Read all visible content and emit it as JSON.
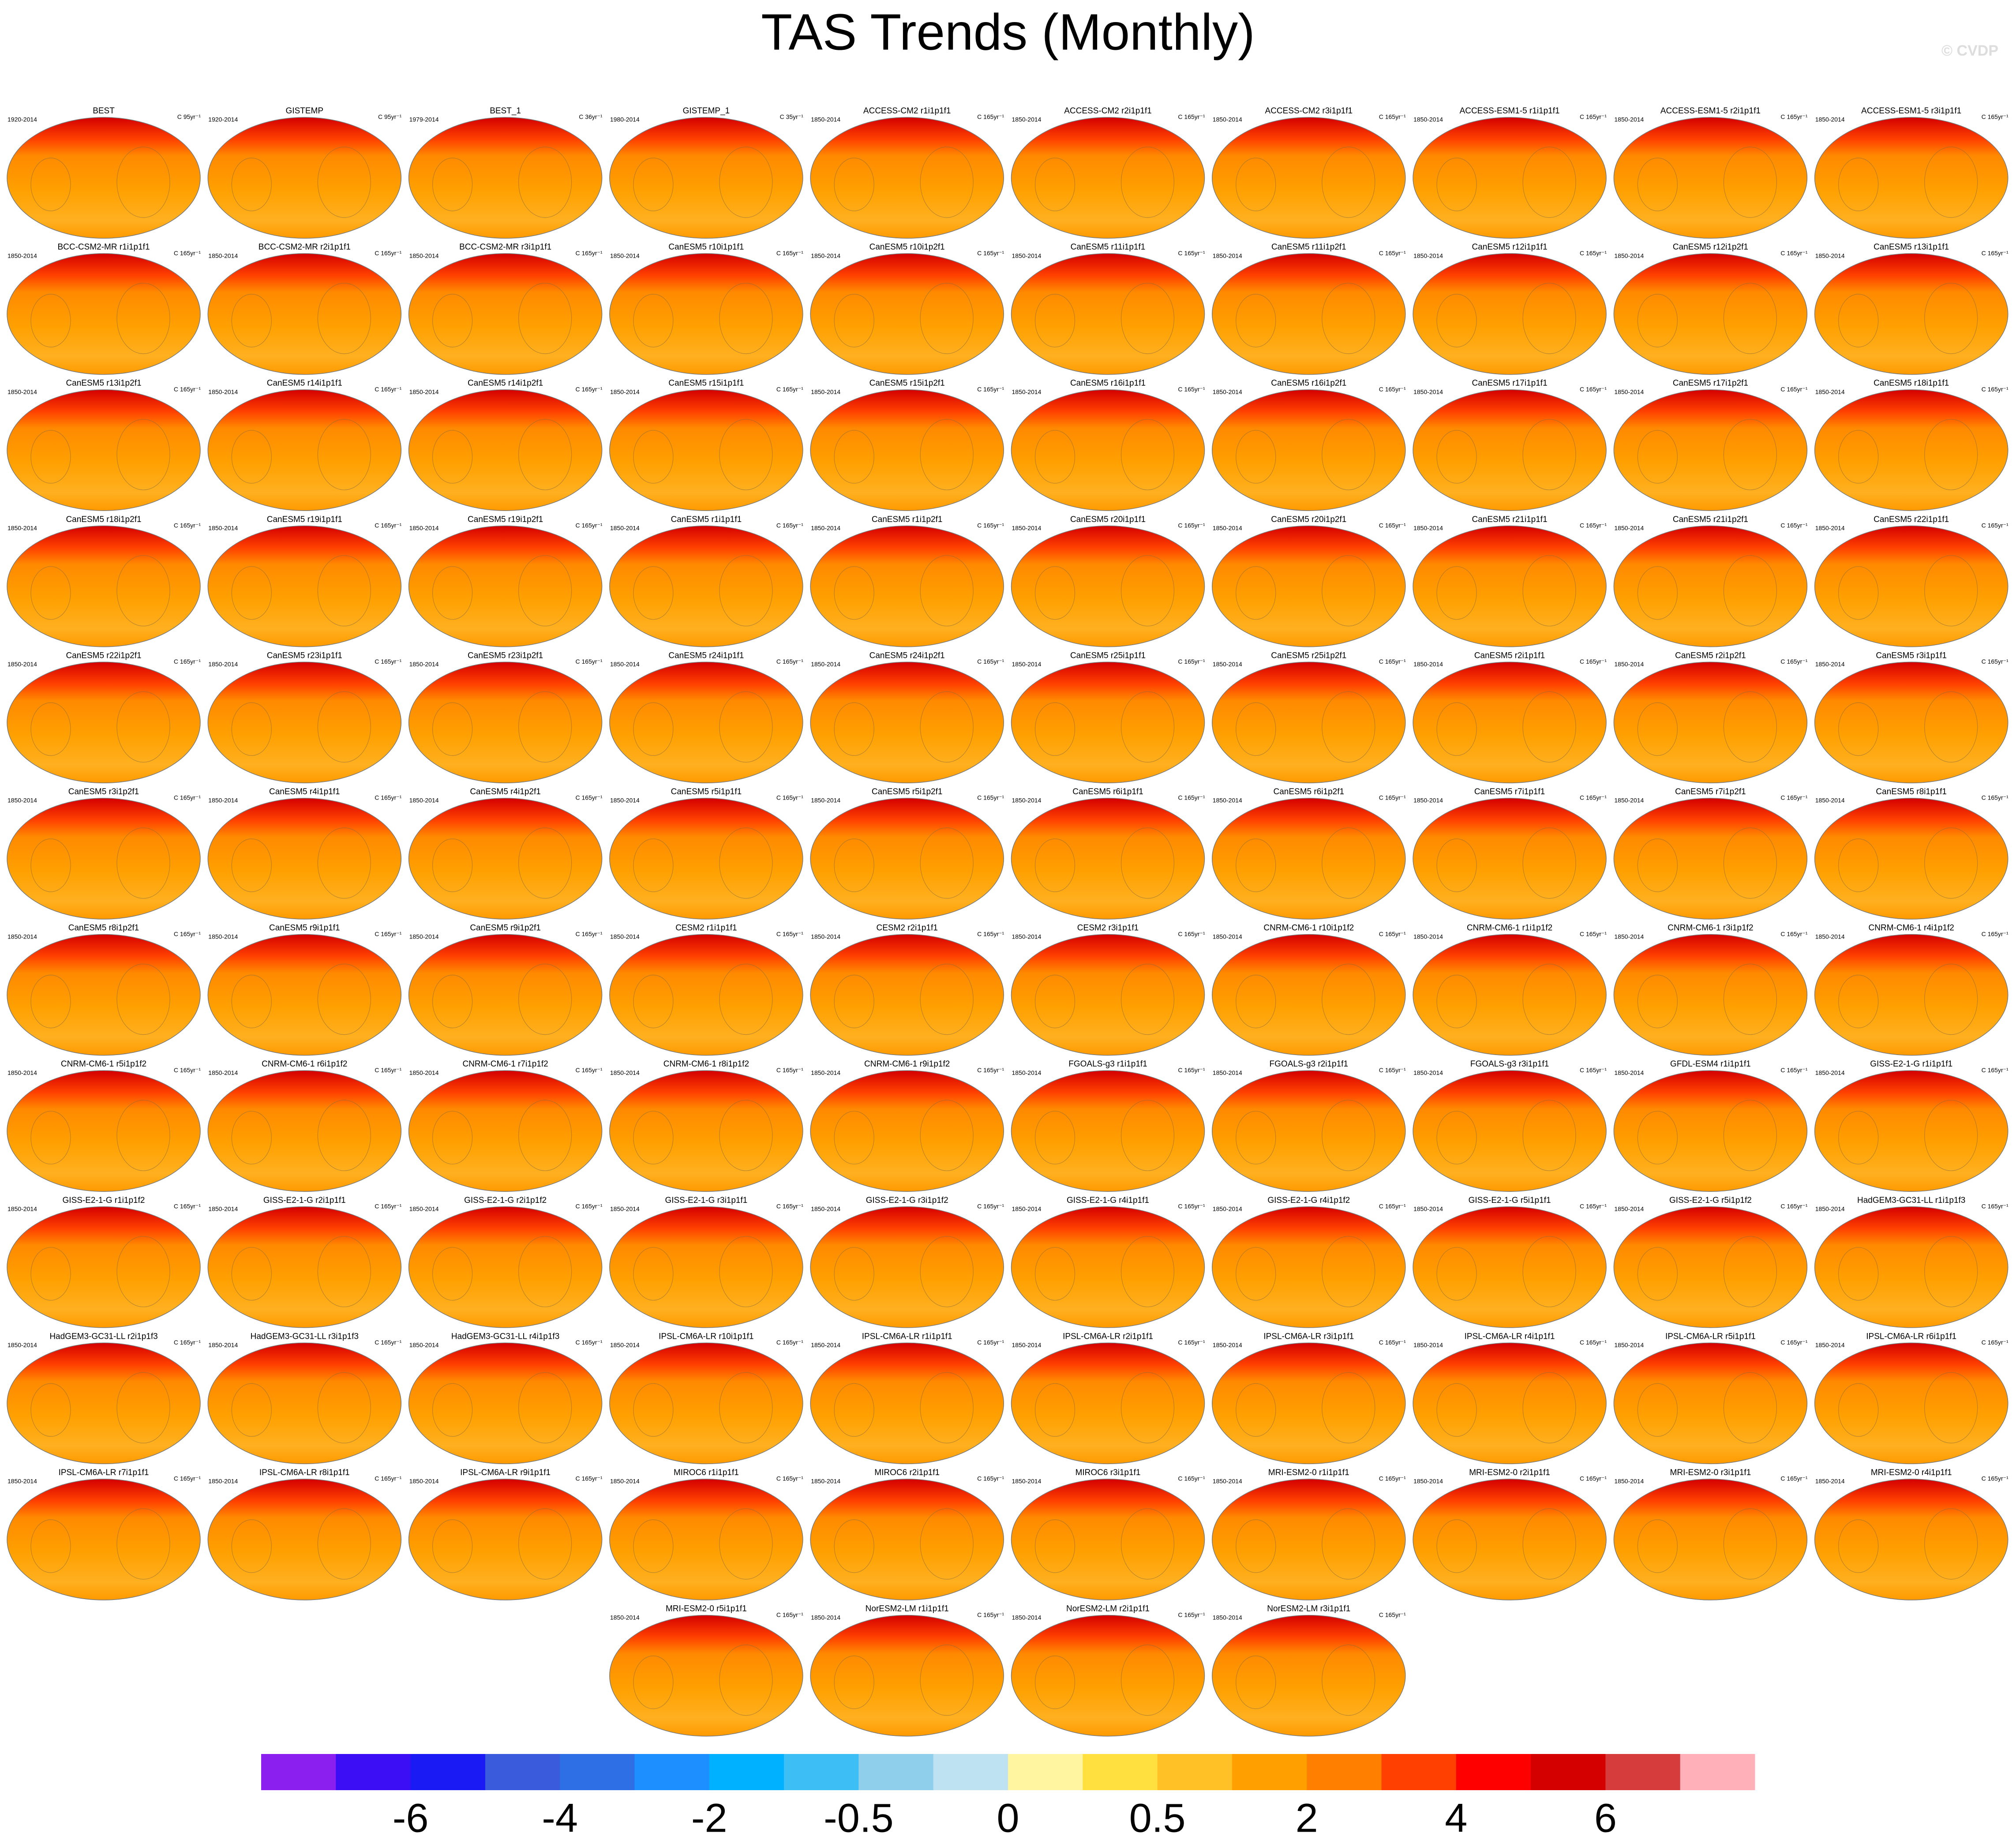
{
  "chart_data": {
    "type": "map-grid",
    "title": "TAS Trends (Monthly)",
    "copyright": "© CVDP",
    "panels": [
      {
        "title": "BEST",
        "period": "1920-2014",
        "units": "C 95yr⁻¹"
      },
      {
        "title": "GISTEMP",
        "period": "1920-2014",
        "units": "C 95yr⁻¹"
      },
      {
        "title": "BEST_1",
        "period": "1979-2014",
        "units": "C 36yr⁻¹"
      },
      {
        "title": "GISTEMP_1",
        "period": "1980-2014",
        "units": "C 35yr⁻¹"
      },
      {
        "title": "ACCESS-CM2 r1i1p1f1",
        "period": "1850-2014",
        "units": "C 165yr⁻¹"
      },
      {
        "title": "ACCESS-CM2 r2i1p1f1",
        "period": "1850-2014",
        "units": "C 165yr⁻¹"
      },
      {
        "title": "ACCESS-CM2 r3i1p1f1",
        "period": "1850-2014",
        "units": "C 165yr⁻¹"
      },
      {
        "title": "ACCESS-ESM1-5 r1i1p1f1",
        "period": "1850-2014",
        "units": "C 165yr⁻¹"
      },
      {
        "title": "ACCESS-ESM1-5 r2i1p1f1",
        "period": "1850-2014",
        "units": "C 165yr⁻¹"
      },
      {
        "title": "ACCESS-ESM1-5 r3i1p1f1",
        "period": "1850-2014",
        "units": "C 165yr⁻¹"
      },
      {
        "title": "BCC-CSM2-MR r1i1p1f1",
        "period": "1850-2014",
        "units": "C 165yr⁻¹"
      },
      {
        "title": "BCC-CSM2-MR r2i1p1f1",
        "period": "1850-2014",
        "units": "C 165yr⁻¹"
      },
      {
        "title": "BCC-CSM2-MR r3i1p1f1",
        "period": "1850-2014",
        "units": "C 165yr⁻¹"
      },
      {
        "title": "CanESM5 r10i1p1f1",
        "period": "1850-2014",
        "units": "C 165yr⁻¹"
      },
      {
        "title": "CanESM5 r10i1p2f1",
        "period": "1850-2014",
        "units": "C 165yr⁻¹"
      },
      {
        "title": "CanESM5 r11i1p1f1",
        "period": "1850-2014",
        "units": "C 165yr⁻¹"
      },
      {
        "title": "CanESM5 r11i1p2f1",
        "period": "1850-2014",
        "units": "C 165yr⁻¹"
      },
      {
        "title": "CanESM5 r12i1p1f1",
        "period": "1850-2014",
        "units": "C 165yr⁻¹"
      },
      {
        "title": "CanESM5 r12i1p2f1",
        "period": "1850-2014",
        "units": "C 165yr⁻¹"
      },
      {
        "title": "CanESM5 r13i1p1f1",
        "period": "1850-2014",
        "units": "C 165yr⁻¹"
      },
      {
        "title": "CanESM5 r13i1p2f1",
        "period": "1850-2014",
        "units": "C 165yr⁻¹"
      },
      {
        "title": "CanESM5 r14i1p1f1",
        "period": "1850-2014",
        "units": "C 165yr⁻¹"
      },
      {
        "title": "CanESM5 r14i1p2f1",
        "period": "1850-2014",
        "units": "C 165yr⁻¹"
      },
      {
        "title": "CanESM5 r15i1p1f1",
        "period": "1850-2014",
        "units": "C 165yr⁻¹"
      },
      {
        "title": "CanESM5 r15i1p2f1",
        "period": "1850-2014",
        "units": "C 165yr⁻¹"
      },
      {
        "title": "CanESM5 r16i1p1f1",
        "period": "1850-2014",
        "units": "C 165yr⁻¹"
      },
      {
        "title": "CanESM5 r16i1p2f1",
        "period": "1850-2014",
        "units": "C 165yr⁻¹"
      },
      {
        "title": "CanESM5 r17i1p1f1",
        "period": "1850-2014",
        "units": "C 165yr⁻¹"
      },
      {
        "title": "CanESM5 r17i1p2f1",
        "period": "1850-2014",
        "units": "C 165yr⁻¹"
      },
      {
        "title": "CanESM5 r18i1p1f1",
        "period": "1850-2014",
        "units": "C 165yr⁻¹"
      },
      {
        "title": "CanESM5 r18i1p2f1",
        "period": "1850-2014",
        "units": "C 165yr⁻¹"
      },
      {
        "title": "CanESM5 r19i1p1f1",
        "period": "1850-2014",
        "units": "C 165yr⁻¹"
      },
      {
        "title": "CanESM5 r19i1p2f1",
        "period": "1850-2014",
        "units": "C 165yr⁻¹"
      },
      {
        "title": "CanESM5 r1i1p1f1",
        "period": "1850-2014",
        "units": "C 165yr⁻¹"
      },
      {
        "title": "CanESM5 r1i1p2f1",
        "period": "1850-2014",
        "units": "C 165yr⁻¹"
      },
      {
        "title": "CanESM5 r20i1p1f1",
        "period": "1850-2014",
        "units": "C 165yr⁻¹"
      },
      {
        "title": "CanESM5 r20i1p2f1",
        "period": "1850-2014",
        "units": "C 165yr⁻¹"
      },
      {
        "title": "CanESM5 r21i1p1f1",
        "period": "1850-2014",
        "units": "C 165yr⁻¹"
      },
      {
        "title": "CanESM5 r21i1p2f1",
        "period": "1850-2014",
        "units": "C 165yr⁻¹"
      },
      {
        "title": "CanESM5 r22i1p1f1",
        "period": "1850-2014",
        "units": "C 165yr⁻¹"
      },
      {
        "title": "CanESM5 r22i1p2f1",
        "period": "1850-2014",
        "units": "C 165yr⁻¹"
      },
      {
        "title": "CanESM5 r23i1p1f1",
        "period": "1850-2014",
        "units": "C 165yr⁻¹"
      },
      {
        "title": "CanESM5 r23i1p2f1",
        "period": "1850-2014",
        "units": "C 165yr⁻¹"
      },
      {
        "title": "CanESM5 r24i1p1f1",
        "period": "1850-2014",
        "units": "C 165yr⁻¹"
      },
      {
        "title": "CanESM5 r24i1p2f1",
        "period": "1850-2014",
        "units": "C 165yr⁻¹"
      },
      {
        "title": "CanESM5 r25i1p1f1",
        "period": "1850-2014",
        "units": "C 165yr⁻¹"
      },
      {
        "title": "CanESM5 r25i1p2f1",
        "period": "1850-2014",
        "units": "C 165yr⁻¹"
      },
      {
        "title": "CanESM5 r2i1p1f1",
        "period": "1850-2014",
        "units": "C 165yr⁻¹"
      },
      {
        "title": "CanESM5 r2i1p2f1",
        "period": "1850-2014",
        "units": "C 165yr⁻¹"
      },
      {
        "title": "CanESM5 r3i1p1f1",
        "period": "1850-2014",
        "units": "C 165yr⁻¹"
      },
      {
        "title": "CanESM5 r3i1p2f1",
        "period": "1850-2014",
        "units": "C 165yr⁻¹"
      },
      {
        "title": "CanESM5 r4i1p1f1",
        "period": "1850-2014",
        "units": "C 165yr⁻¹"
      },
      {
        "title": "CanESM5 r4i1p2f1",
        "period": "1850-2014",
        "units": "C 165yr⁻¹"
      },
      {
        "title": "CanESM5 r5i1p1f1",
        "period": "1850-2014",
        "units": "C 165yr⁻¹"
      },
      {
        "title": "CanESM5 r5i1p2f1",
        "period": "1850-2014",
        "units": "C 165yr⁻¹"
      },
      {
        "title": "CanESM5 r6i1p1f1",
        "period": "1850-2014",
        "units": "C 165yr⁻¹"
      },
      {
        "title": "CanESM5 r6i1p2f1",
        "period": "1850-2014",
        "units": "C 165yr⁻¹"
      },
      {
        "title": "CanESM5 r7i1p1f1",
        "period": "1850-2014",
        "units": "C 165yr⁻¹"
      },
      {
        "title": "CanESM5 r7i1p2f1",
        "period": "1850-2014",
        "units": "C 165yr⁻¹"
      },
      {
        "title": "CanESM5 r8i1p1f1",
        "period": "1850-2014",
        "units": "C 165yr⁻¹"
      },
      {
        "title": "CanESM5 r8i1p2f1",
        "period": "1850-2014",
        "units": "C 165yr⁻¹"
      },
      {
        "title": "CanESM5 r9i1p1f1",
        "period": "1850-2014",
        "units": "C 165yr⁻¹"
      },
      {
        "title": "CanESM5 r9i1p2f1",
        "period": "1850-2014",
        "units": "C 165yr⁻¹"
      },
      {
        "title": "CESM2 r1i1p1f1",
        "period": "1850-2014",
        "units": "C 165yr⁻¹"
      },
      {
        "title": "CESM2 r2i1p1f1",
        "period": "1850-2014",
        "units": "C 165yr⁻¹"
      },
      {
        "title": "CESM2 r3i1p1f1",
        "period": "1850-2014",
        "units": "C 165yr⁻¹"
      },
      {
        "title": "CNRM-CM6-1 r10i1p1f2",
        "period": "1850-2014",
        "units": "C 165yr⁻¹"
      },
      {
        "title": "CNRM-CM6-1 r1i1p1f2",
        "period": "1850-2014",
        "units": "C 165yr⁻¹"
      },
      {
        "title": "CNRM-CM6-1 r3i1p1f2",
        "period": "1850-2014",
        "units": "C 165yr⁻¹"
      },
      {
        "title": "CNRM-CM6-1 r4i1p1f2",
        "period": "1850-2014",
        "units": "C 165yr⁻¹"
      },
      {
        "title": "CNRM-CM6-1 r5i1p1f2",
        "period": "1850-2014",
        "units": "C 165yr⁻¹"
      },
      {
        "title": "CNRM-CM6-1 r6i1p1f2",
        "period": "1850-2014",
        "units": "C 165yr⁻¹"
      },
      {
        "title": "CNRM-CM6-1 r7i1p1f2",
        "period": "1850-2014",
        "units": "C 165yr⁻¹"
      },
      {
        "title": "CNRM-CM6-1 r8i1p1f2",
        "period": "1850-2014",
        "units": "C 165yr⁻¹"
      },
      {
        "title": "CNRM-CM6-1 r9i1p1f2",
        "period": "1850-2014",
        "units": "C 165yr⁻¹"
      },
      {
        "title": "FGOALS-g3 r1i1p1f1",
        "period": "1850-2014",
        "units": "C 165yr⁻¹"
      },
      {
        "title": "FGOALS-g3 r2i1p1f1",
        "period": "1850-2014",
        "units": "C 165yr⁻¹"
      },
      {
        "title": "FGOALS-g3 r3i1p1f1",
        "period": "1850-2014",
        "units": "C 165yr⁻¹"
      },
      {
        "title": "GFDL-ESM4 r1i1p1f1",
        "period": "1850-2014",
        "units": "C 165yr⁻¹"
      },
      {
        "title": "GISS-E2-1-G r1i1p1f1",
        "period": "1850-2014",
        "units": "C 165yr⁻¹"
      },
      {
        "title": "GISS-E2-1-G r1i1p1f2",
        "period": "1850-2014",
        "units": "C 165yr⁻¹"
      },
      {
        "title": "GISS-E2-1-G r2i1p1f1",
        "period": "1850-2014",
        "units": "C 165yr⁻¹"
      },
      {
        "title": "GISS-E2-1-G r2i1p1f2",
        "period": "1850-2014",
        "units": "C 165yr⁻¹"
      },
      {
        "title": "GISS-E2-1-G r3i1p1f1",
        "period": "1850-2014",
        "units": "C 165yr⁻¹"
      },
      {
        "title": "GISS-E2-1-G r3i1p1f2",
        "period": "1850-2014",
        "units": "C 165yr⁻¹"
      },
      {
        "title": "GISS-E2-1-G r4i1p1f1",
        "period": "1850-2014",
        "units": "C 165yr⁻¹"
      },
      {
        "title": "GISS-E2-1-G r4i1p1f2",
        "period": "1850-2014",
        "units": "C 165yr⁻¹"
      },
      {
        "title": "GISS-E2-1-G r5i1p1f1",
        "period": "1850-2014",
        "units": "C 165yr⁻¹"
      },
      {
        "title": "GISS-E2-1-G r5i1p1f2",
        "period": "1850-2014",
        "units": "C 165yr⁻¹"
      },
      {
        "title": "HadGEM3-GC31-LL r1i1p1f3",
        "period": "1850-2014",
        "units": "C 165yr⁻¹"
      },
      {
        "title": "HadGEM3-GC31-LL r2i1p1f3",
        "period": "1850-2014",
        "units": "C 165yr⁻¹"
      },
      {
        "title": "HadGEM3-GC31-LL r3i1p1f3",
        "period": "1850-2014",
        "units": "C 165yr⁻¹"
      },
      {
        "title": "HadGEM3-GC31-LL r4i1p1f3",
        "period": "1850-2014",
        "units": "C 165yr⁻¹"
      },
      {
        "title": "IPSL-CM6A-LR r10i1p1f1",
        "period": "1850-2014",
        "units": "C 165yr⁻¹"
      },
      {
        "title": "IPSL-CM6A-LR r1i1p1f1",
        "period": "1850-2014",
        "units": "C 165yr⁻¹"
      },
      {
        "title": "IPSL-CM6A-LR r2i1p1f1",
        "period": "1850-2014",
        "units": "C 165yr⁻¹"
      },
      {
        "title": "IPSL-CM6A-LR r3i1p1f1",
        "period": "1850-2014",
        "units": "C 165yr⁻¹"
      },
      {
        "title": "IPSL-CM6A-LR r4i1p1f1",
        "period": "1850-2014",
        "units": "C 165yr⁻¹"
      },
      {
        "title": "IPSL-CM6A-LR r5i1p1f1",
        "period": "1850-2014",
        "units": "C 165yr⁻¹"
      },
      {
        "title": "IPSL-CM6A-LR r6i1p1f1",
        "period": "1850-2014",
        "units": "C 165yr⁻¹"
      },
      {
        "title": "IPSL-CM6A-LR r7i1p1f1",
        "period": "1850-2014",
        "units": "C 165yr⁻¹"
      },
      {
        "title": "IPSL-CM6A-LR r8i1p1f1",
        "period": "1850-2014",
        "units": "C 165yr⁻¹"
      },
      {
        "title": "IPSL-CM6A-LR r9i1p1f1",
        "period": "1850-2014",
        "units": "C 165yr⁻¹"
      },
      {
        "title": "MIROC6 r1i1p1f1",
        "period": "1850-2014",
        "units": "C 165yr⁻¹"
      },
      {
        "title": "MIROC6 r2i1p1f1",
        "period": "1850-2014",
        "units": "C 165yr⁻¹"
      },
      {
        "title": "MIROC6 r3i1p1f1",
        "period": "1850-2014",
        "units": "C 165yr⁻¹"
      },
      {
        "title": "MRI-ESM2-0 r1i1p1f1",
        "period": "1850-2014",
        "units": "C 165yr⁻¹"
      },
      {
        "title": "MRI-ESM2-0 r2i1p1f1",
        "period": "1850-2014",
        "units": "C 165yr⁻¹"
      },
      {
        "title": "MRI-ESM2-0 r3i1p1f1",
        "period": "1850-2014",
        "units": "C 165yr⁻¹"
      },
      {
        "title": "MRI-ESM2-0 r4i1p1f1",
        "period": "1850-2014",
        "units": "C 165yr⁻¹"
      },
      {
        "title": "MRI-ESM2-0 r5i1p1f1",
        "period": "1850-2014",
        "units": "C 165yr⁻¹"
      },
      {
        "title": "NorESM2-LM r1i1p1f1",
        "period": "1850-2014",
        "units": "C 165yr⁻¹"
      },
      {
        "title": "NorESM2-LM r2i1p1f1",
        "period": "1850-2014",
        "units": "C 165yr⁻¹"
      },
      {
        "title": "NorESM2-LM r3i1p1f1",
        "period": "1850-2014",
        "units": "C 165yr⁻¹"
      }
    ],
    "colorbar": {
      "colors": [
        "#8a1ff0",
        "#3b0ef5",
        "#1a1af5",
        "#3a5cdc",
        "#2e6fe6",
        "#1e8fff",
        "#00b1ff",
        "#3dbff5",
        "#90cfec",
        "#bee2f2",
        "#fff4a0",
        "#ffe03f",
        "#ffc125",
        "#ffa000",
        "#ff7f00",
        "#ff4000",
        "#ff0000",
        "#d40000",
        "#d63c3c",
        "#ffb0b8"
      ],
      "ticks": [
        -6,
        -4,
        -2,
        -0.5,
        0,
        0.5,
        2,
        4,
        6
      ]
    }
  }
}
